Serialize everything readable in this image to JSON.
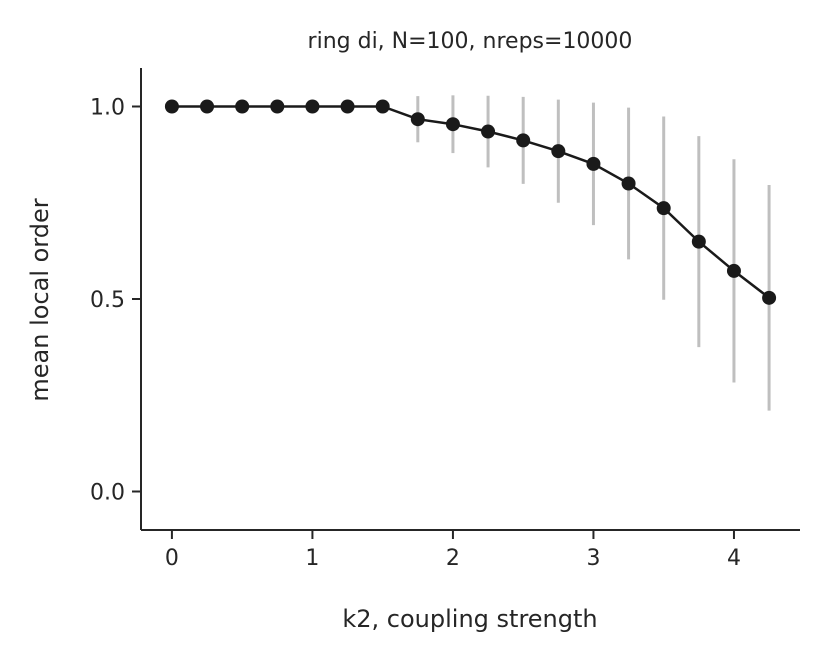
{
  "chart_data": {
    "type": "line",
    "title": "ring di, N=100, nreps=10000",
    "xlabel": "k2, coupling strength",
    "ylabel": "mean local order",
    "xlim": [
      -0.22,
      4.47
    ],
    "ylim": [
      -0.1,
      1.1
    ],
    "xticks": [
      0,
      1,
      2,
      3,
      4
    ],
    "xtick_labels": [
      "0",
      "1",
      "2",
      "3",
      "4"
    ],
    "yticks": [
      0.0,
      0.5,
      1.0
    ],
    "ytick_labels": [
      "0.0",
      "0.5",
      "1.0"
    ],
    "grid": false,
    "series": [
      {
        "x": [
          0,
          0.25,
          0.5,
          0.75,
          1.0,
          1.25,
          1.5,
          1.75,
          2.0,
          2.25,
          2.5,
          2.75,
          3.0,
          3.25,
          3.5,
          3.75,
          4.0,
          4.25
        ],
        "y": [
          1.0,
          1.0,
          1.0,
          1.0,
          1.0,
          1.0,
          1.0,
          0.967,
          0.954,
          0.935,
          0.912,
          0.884,
          0.851,
          0.8,
          0.736,
          0.649,
          0.573,
          0.503
        ],
        "error": [
          0.0,
          0.0,
          0.0,
          0.0,
          0.0,
          0.0,
          0.0,
          0.06,
          0.075,
          0.093,
          0.113,
          0.134,
          0.159,
          0.197,
          0.238,
          0.274,
          0.29,
          0.293
        ],
        "line_color": "#1a1a1a",
        "marker_color": "#1a1a1a",
        "error_color": "#bfbfbf"
      }
    ]
  }
}
